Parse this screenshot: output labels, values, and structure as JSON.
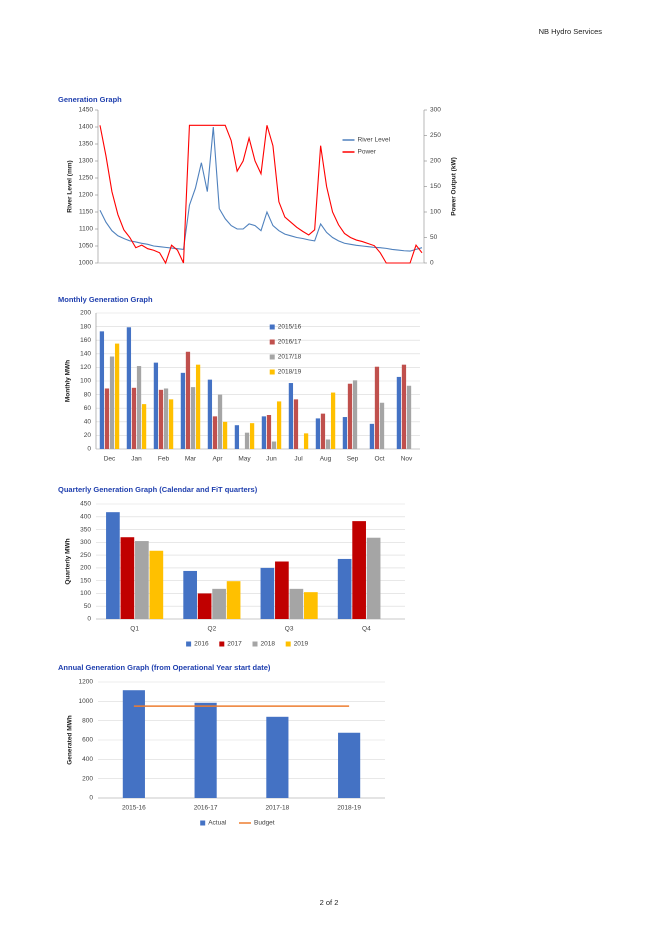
{
  "header": "NB Hydro Services",
  "footer": "2 of 2",
  "chart_data": [
    {
      "type": "line",
      "title": "Generation Graph",
      "ylabel": "River Level (mm)",
      "y2label": "Power Output (kW)",
      "ylim": [
        1000,
        1450
      ],
      "yticks": [
        1000,
        1050,
        1100,
        1150,
        1200,
        1250,
        1300,
        1350,
        1400,
        1450
      ],
      "y2lim": [
        0,
        300
      ],
      "y2ticks": [
        0,
        50,
        100,
        150,
        200,
        250,
        300
      ],
      "grid": false,
      "legend": "upper right",
      "series": [
        {
          "name": "River Level",
          "color": "#4f81bd",
          "values": [
            1155,
            1120,
            1095,
            1080,
            1072,
            1065,
            1062,
            1058,
            1055,
            1050,
            1048,
            1046,
            1044,
            1042,
            1040,
            1170,
            1220,
            1295,
            1210,
            1400,
            1160,
            1130,
            1110,
            1100,
            1100,
            1115,
            1110,
            1095,
            1150,
            1110,
            1095,
            1085,
            1080,
            1075,
            1072,
            1068,
            1065,
            1115,
            1090,
            1075,
            1065,
            1058,
            1055,
            1052,
            1050,
            1048,
            1046,
            1045,
            1043,
            1040,
            1038,
            1036,
            1035,
            1040,
            1045
          ]
        },
        {
          "name": "Power",
          "color": "#ff0000",
          "axis": "y2",
          "values": [
            270,
            210,
            140,
            95,
            65,
            50,
            30,
            35,
            28,
            25,
            20,
            0,
            35,
            25,
            0,
            270,
            270,
            270,
            270,
            270,
            270,
            270,
            240,
            180,
            200,
            245,
            200,
            175,
            270,
            230,
            120,
            90,
            80,
            70,
            62,
            55,
            65,
            230,
            150,
            100,
            75,
            58,
            50,
            45,
            42,
            38,
            34,
            20,
            0,
            0,
            0,
            0,
            0,
            35,
            20
          ]
        }
      ]
    },
    {
      "type": "bar",
      "title": "Monthly Generation Graph",
      "ylabel": "Monthly MWh",
      "categories": [
        "Dec",
        "Jan",
        "Feb",
        "Mar",
        "Apr",
        "May",
        "Jun",
        "Jul",
        "Aug",
        "Sep",
        "Oct",
        "Nov"
      ],
      "ylim": [
        0,
        200
      ],
      "yticks": [
        0,
        20,
        40,
        60,
        80,
        100,
        120,
        140,
        160,
        180,
        200
      ],
      "grid": true,
      "legend": "right",
      "series": [
        {
          "name": "2015/16",
          "color": "#4472c4",
          "values": [
            173,
            179,
            127,
            112,
            102,
            35,
            48,
            97,
            45,
            47,
            37,
            106
          ]
        },
        {
          "name": "2016/17",
          "color": "#c0504d",
          "values": [
            89,
            90,
            87,
            143,
            48,
            null,
            50,
            73,
            52,
            96,
            121,
            124
          ]
        },
        {
          "name": "2017/18",
          "color": "#a5a5a5",
          "values": [
            136,
            122,
            89,
            91,
            80,
            24,
            11,
            null,
            14,
            101,
            68,
            93
          ]
        },
        {
          "name": "2018/19",
          "color": "#ffc000",
          "values": [
            155,
            66,
            73,
            124,
            40,
            38,
            70,
            23,
            83,
            null,
            null,
            null
          ]
        }
      ]
    },
    {
      "type": "bar",
      "title": "Quarterly Generation Graph (Calendar and FiT quarters)",
      "ylabel": "Quarterly MWh",
      "categories": [
        "Q1",
        "Q2",
        "Q3",
        "Q4"
      ],
      "ylim": [
        0,
        450
      ],
      "yticks": [
        0,
        50,
        100,
        150,
        200,
        250,
        300,
        350,
        400,
        450
      ],
      "grid": true,
      "legend": "bottom",
      "series": [
        {
          "name": "2016",
          "color": "#4472c4",
          "values": [
            418,
            188,
            200,
            235
          ]
        },
        {
          "name": "2017",
          "color": "#c00000",
          "values": [
            320,
            100,
            225,
            383
          ]
        },
        {
          "name": "2018",
          "color": "#a5a5a5",
          "values": [
            305,
            118,
            118,
            318
          ]
        },
        {
          "name": "2019",
          "color": "#ffc000",
          "values": [
            267,
            148,
            105,
            null
          ]
        }
      ]
    },
    {
      "type": "bar",
      "title": "Annual Generation Graph (from Operational Year start date)",
      "ylabel": "Generated MWh",
      "categories": [
        "2015-16",
        "2016-17",
        "2017-18",
        "2018-19"
      ],
      "ylim": [
        0,
        1200
      ],
      "yticks": [
        0,
        200,
        400,
        600,
        800,
        1000,
        1200
      ],
      "grid": true,
      "legend": "bottom",
      "series": [
        {
          "name": "Actual",
          "color": "#4472c4",
          "values": [
            1115,
            985,
            840,
            675
          ]
        },
        {
          "name": "Budget",
          "color": "#ed7d31",
          "type": "line",
          "values": [
            950,
            950,
            950,
            950
          ]
        }
      ]
    }
  ]
}
